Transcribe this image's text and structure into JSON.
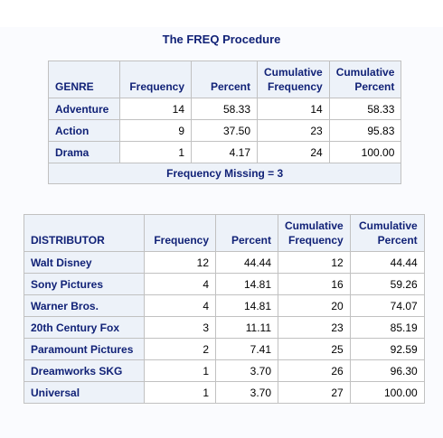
{
  "title": "The FREQ Procedure",
  "genre_table": {
    "headers": {
      "row_var": "GENRE",
      "frequency": "Frequency",
      "percent": "Percent",
      "cum_frequency": [
        "Cumulative",
        "Frequency"
      ],
      "cum_percent": [
        "Cumulative",
        "Percent"
      ]
    },
    "rows": [
      {
        "label": "Adventure",
        "frequency": "14",
        "percent": "58.33",
        "cum_frequency": "14",
        "cum_percent": "58.33"
      },
      {
        "label": "Action",
        "frequency": "9",
        "percent": "37.50",
        "cum_frequency": "23",
        "cum_percent": "95.83"
      },
      {
        "label": "Drama",
        "frequency": "1",
        "percent": "4.17",
        "cum_frequency": "24",
        "cum_percent": "100.00"
      }
    ],
    "footer": "Frequency Missing = 3"
  },
  "distributor_table": {
    "headers": {
      "row_var": "DISTRIBUTOR",
      "frequency": "Frequency",
      "percent": "Percent",
      "cum_frequency": [
        "Cumulative",
        "Frequency"
      ],
      "cum_percent": [
        "Cumulative",
        "Percent"
      ]
    },
    "rows": [
      {
        "label": "Walt Disney",
        "frequency": "12",
        "percent": "44.44",
        "cum_frequency": "12",
        "cum_percent": "44.44"
      },
      {
        "label": "Sony Pictures",
        "frequency": "4",
        "percent": "14.81",
        "cum_frequency": "16",
        "cum_percent": "59.26"
      },
      {
        "label": "Warner Bros.",
        "frequency": "4",
        "percent": "14.81",
        "cum_frequency": "20",
        "cum_percent": "74.07"
      },
      {
        "label": "20th Century Fox",
        "frequency": "3",
        "percent": "11.11",
        "cum_frequency": "23",
        "cum_percent": "85.19"
      },
      {
        "label": "Paramount Pictures",
        "frequency": "2",
        "percent": "7.41",
        "cum_frequency": "25",
        "cum_percent": "92.59"
      },
      {
        "label": "Dreamworks SKG",
        "frequency": "1",
        "percent": "3.70",
        "cum_frequency": "26",
        "cum_percent": "96.30"
      },
      {
        "label": "Universal",
        "frequency": "1",
        "percent": "3.70",
        "cum_frequency": "27",
        "cum_percent": "100.00"
      }
    ]
  },
  "colors": {
    "header_background": "#edf2f9",
    "header_text": "#112277",
    "border": "#c1c1c1",
    "page_background": "#fafbfe"
  }
}
